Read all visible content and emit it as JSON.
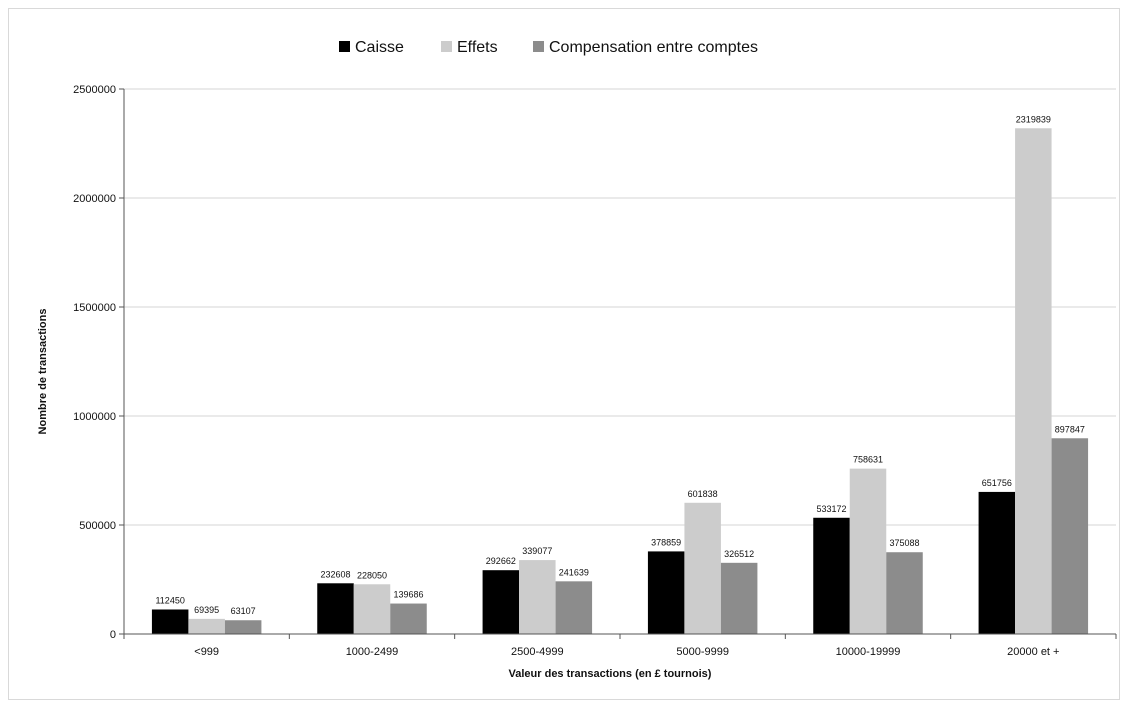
{
  "chart_data": {
    "type": "bar",
    "categories": [
      "<999",
      "1000-2499",
      "2500-4999",
      "5000-9999",
      "10000-19999",
      "20000 et +"
    ],
    "series": [
      {
        "name": "Caisse",
        "color": "#000000",
        "values": [
          112450,
          232608,
          292662,
          378859,
          533172,
          651756
        ]
      },
      {
        "name": "Effets",
        "color": "#cccccc",
        "values": [
          69395,
          228050,
          339077,
          601838,
          758631,
          2319839
        ]
      },
      {
        "name": "Compensation entre comptes",
        "color": "#8c8c8c",
        "values": [
          63107,
          139686,
          241639,
          326512,
          375088,
          897847
        ]
      }
    ],
    "xlabel": "Valeur des transactions (en £ tournois)",
    "ylabel": "Nombre de transactions",
    "ylim": [
      0,
      2500000
    ],
    "yticks": [
      0,
      500000,
      1000000,
      1500000,
      2000000,
      2500000
    ],
    "grid": true,
    "legend_position": "top-center",
    "data_labels": true
  }
}
